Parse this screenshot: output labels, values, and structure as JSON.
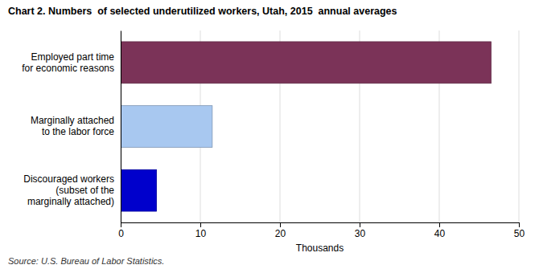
{
  "chart_data": {
    "type": "bar",
    "orientation": "horizontal",
    "title": "Chart 2. Numbers  of selected underutilized workers, Utah, 2015  annual averages",
    "categories": [
      "Discouraged workers\n(subset of the\nmarginally attached)",
      "Marginally attached\nto the labor force",
      "Employed part time\nfor economic reasons"
    ],
    "values": [
      4.5,
      11.5,
      46.5
    ],
    "colors": [
      "#0000cc",
      "#a8c8f0",
      "#7b3358"
    ],
    "xlabel": "Thousands",
    "xlim": [
      0,
      50
    ],
    "xticks": [
      0,
      10,
      20,
      30,
      40,
      50
    ],
    "grid": true,
    "source": "Source: U.S. Bureau of Labor Statistics."
  }
}
